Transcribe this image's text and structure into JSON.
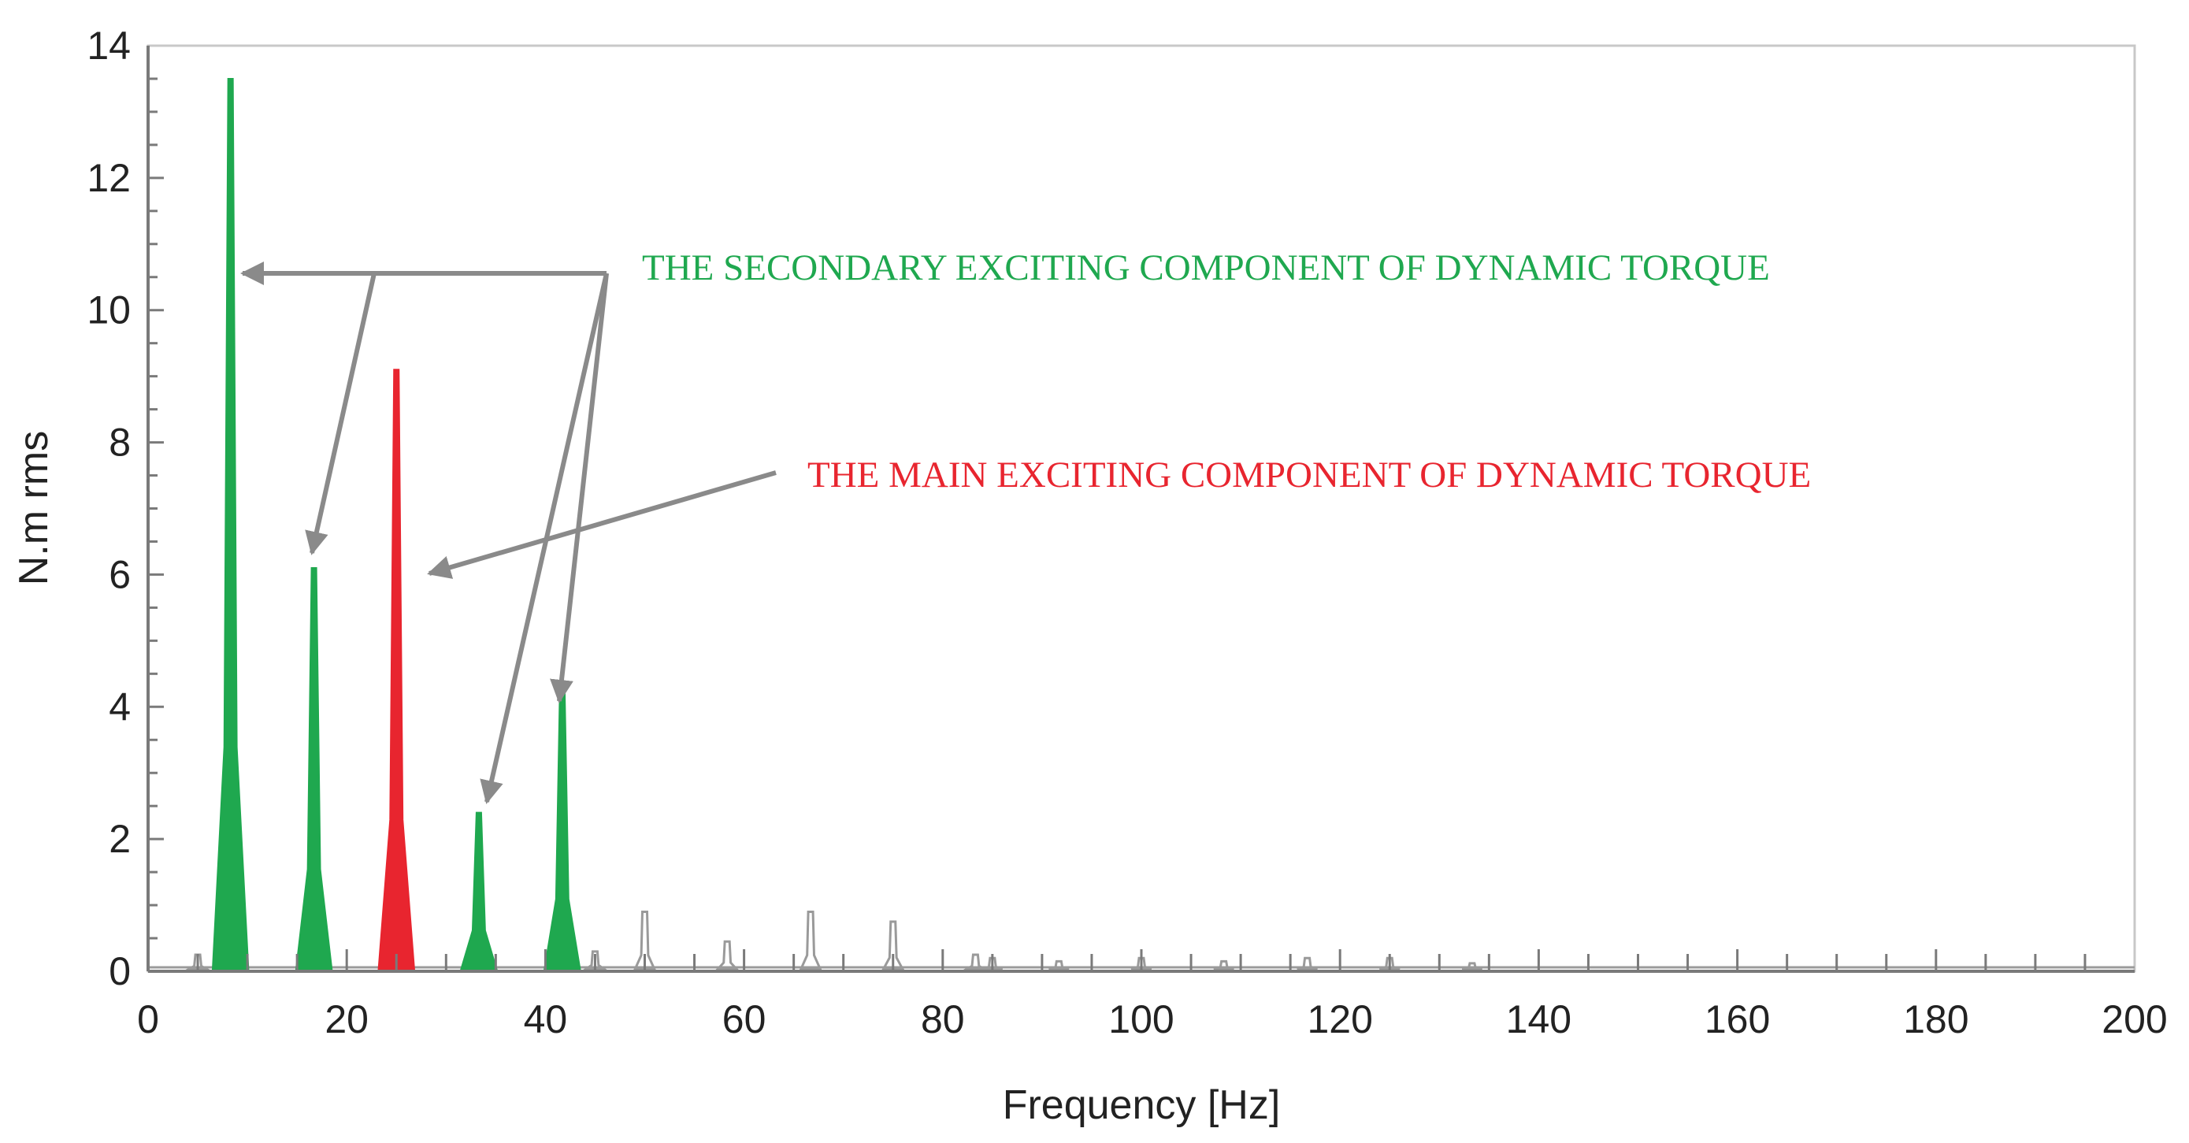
{
  "chart_data": {
    "type": "area",
    "xlabel": "Frequency [Hz]",
    "ylabel": "N.m rms",
    "xlim": [
      0,
      200
    ],
    "ylim": [
      0,
      14
    ],
    "x_ticks": [
      0,
      20,
      40,
      60,
      80,
      100,
      120,
      140,
      160,
      180,
      200
    ],
    "y_ticks": [
      0,
      2,
      4,
      6,
      8,
      10,
      12,
      14
    ],
    "grid": false,
    "colors": {
      "secondary": "#1fa84f",
      "main": "#e8252f",
      "other": "#9a9a9a",
      "arrow": "#8a8a8a"
    },
    "secondary_peaks": [
      {
        "x": 8.3,
        "y": 13.5
      },
      {
        "x": 16.7,
        "y": 6.1
      },
      {
        "x": 33.3,
        "y": 2.4
      },
      {
        "x": 41.7,
        "y": 4.3
      }
    ],
    "main_peaks": [
      {
        "x": 25.0,
        "y": 9.1
      }
    ],
    "minor_peaks": [
      {
        "x": 5.0,
        "y": 0.25
      },
      {
        "x": 45.0,
        "y": 0.3
      },
      {
        "x": 50.0,
        "y": 0.9
      },
      {
        "x": 58.3,
        "y": 0.45
      },
      {
        "x": 66.7,
        "y": 0.9
      },
      {
        "x": 75.0,
        "y": 0.75
      },
      {
        "x": 83.3,
        "y": 0.25
      },
      {
        "x": 85.0,
        "y": 0.2
      },
      {
        "x": 91.7,
        "y": 0.15
      },
      {
        "x": 100.0,
        "y": 0.2
      },
      {
        "x": 108.3,
        "y": 0.15
      },
      {
        "x": 116.7,
        "y": 0.2
      },
      {
        "x": 125.0,
        "y": 0.2
      },
      {
        "x": 133.3,
        "y": 0.12
      }
    ],
    "annotations": [
      {
        "text": "THE SECONDARY EXCITING COMPONENT OF DYNAMIC TORQUE",
        "color": "#1fa84f"
      },
      {
        "text": "THE MAIN EXCITING COMPONENT OF DYNAMIC TORQUE",
        "color": "#e8252f"
      }
    ]
  }
}
